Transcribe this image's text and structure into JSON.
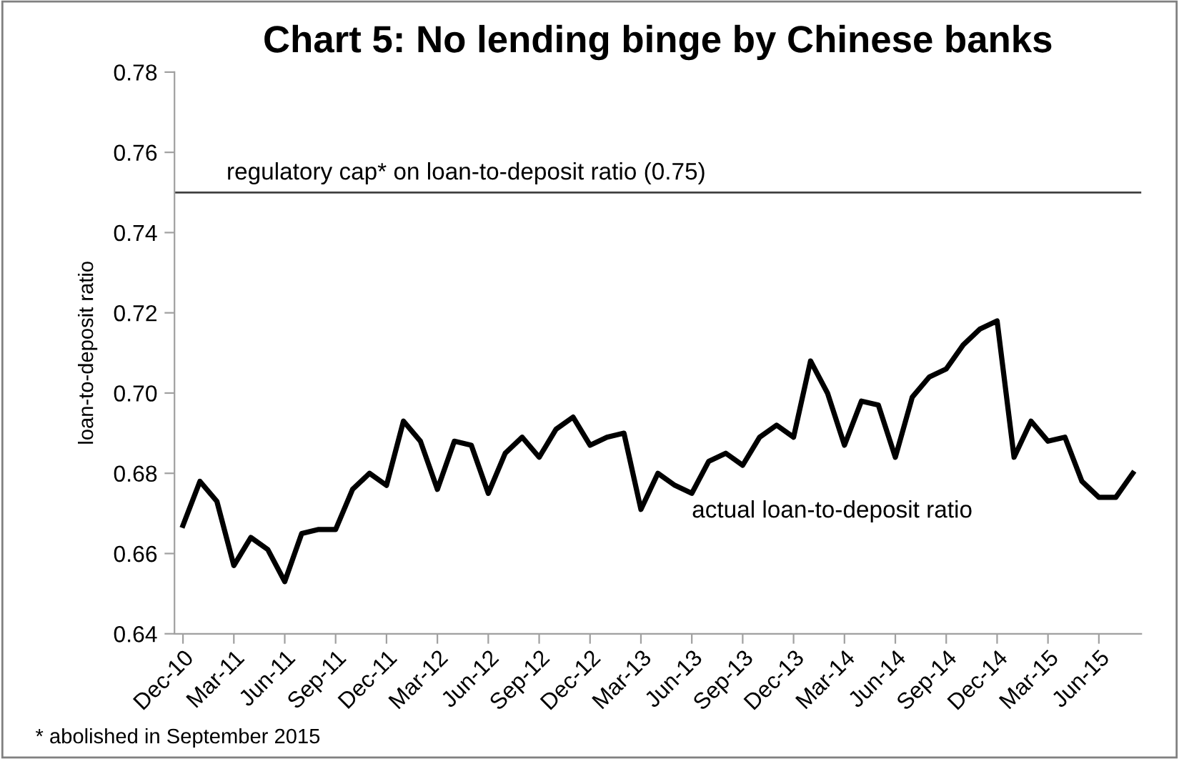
{
  "chart_data": {
    "type": "line",
    "title": "Chart 5: No lending binge by Chinese banks",
    "ylabel": "loan-to-deposit ratio",
    "categories": [
      "Dec-10",
      null,
      null,
      "Mar-11",
      null,
      null,
      "Jun-11",
      null,
      null,
      "Sep-11",
      null,
      null,
      "Dec-11",
      null,
      null,
      "Mar-12",
      null,
      null,
      "Jun-12",
      null,
      null,
      "Sep-12",
      null,
      null,
      "Dec-12",
      null,
      null,
      "Mar-13",
      null,
      null,
      "Jun-13",
      null,
      null,
      "Sep-13",
      null,
      null,
      "Dec-13",
      null,
      null,
      "Mar-14",
      null,
      null,
      "Jun-14",
      null,
      null,
      "Sep-14",
      null,
      null,
      "Dec-14",
      null,
      null,
      "Mar-15",
      null,
      null,
      "Jun-15",
      null,
      null
    ],
    "series": [
      {
        "color": "#000000",
        "values": [
          0.667,
          0.678,
          0.673,
          0.657,
          0.664,
          0.661,
          0.653,
          0.665,
          0.666,
          0.666,
          0.676,
          0.68,
          0.677,
          0.693,
          0.688,
          0.676,
          0.688,
          0.687,
          0.675,
          0.685,
          0.689,
          0.684,
          0.691,
          0.694,
          0.687,
          0.689,
          0.69,
          0.671,
          0.68,
          0.677,
          0.675,
          0.683,
          0.685,
          0.682,
          0.689,
          0.692,
          0.689,
          0.708,
          0.7,
          0.687,
          0.698,
          0.697,
          0.684,
          0.699,
          0.704,
          0.706,
          0.712,
          0.716,
          0.718,
          0.684,
          0.693,
          0.688,
          0.689,
          0.678,
          0.674,
          0.674,
          0.68
        ]
      }
    ],
    "ylim": [
      0.64,
      0.78
    ],
    "yticks": [
      {
        "value": 0.64,
        "label": "0.64"
      },
      {
        "value": 0.66,
        "label": "0.66"
      },
      {
        "value": 0.68,
        "label": "0.68"
      },
      {
        "value": 0.7,
        "label": "0.70"
      },
      {
        "value": 0.72,
        "label": "0.72"
      },
      {
        "value": 0.74,
        "label": "0.74"
      },
      {
        "value": 0.76,
        "label": "0.76"
      },
      {
        "value": 0.78,
        "label": "0.78"
      }
    ],
    "ref_lines": [
      {
        "axis": "y",
        "value": 0.75,
        "label": "regulatory cap* on loan-to-deposit ratio (0.75)",
        "color": "#404040"
      }
    ],
    "annotations": [
      "actual loan-to-deposit ratio",
      "* abolished in September 2015"
    ],
    "grid": false,
    "legend": false,
    "marker": "none",
    "line_style": "solid"
  }
}
